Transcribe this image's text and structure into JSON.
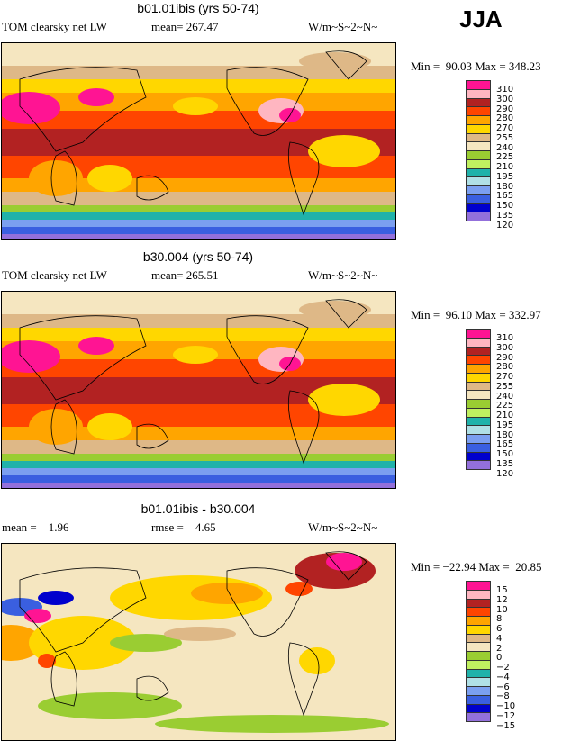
{
  "season": "JJA",
  "panels": [
    {
      "title": "b01.01ibis (yrs 50-74)",
      "left": "TOM clearsky net LW",
      "mid": "mean= 267.47",
      "units": "W/m~S~2~N~",
      "min": "Min =  90.03 Max = 348.23",
      "legend": [
        "310",
        "300",
        "290",
        "280",
        "270",
        "255",
        "240",
        "225",
        "210",
        "195",
        "180",
        "165",
        "150",
        "135",
        "120"
      ]
    },
    {
      "title": "b30.004 (yrs 50-74)",
      "left": "TOM clearsky net LW",
      "mid": "mean= 265.51",
      "units": "W/m~S~2~N~",
      "min": "Min =  96.10 Max = 332.97",
      "legend": [
        "310",
        "300",
        "290",
        "280",
        "270",
        "255",
        "240",
        "225",
        "210",
        "195",
        "180",
        "165",
        "150",
        "135",
        "120"
      ]
    },
    {
      "title": "b01.01ibis - b30.004",
      "left": "mean =    1.96",
      "mid": "rmse =    4.65",
      "units": "W/m~S~2~N~",
      "min": "Min = −22.94 Max =  20.85",
      "legend": [
        "15",
        "12",
        "10",
        "8",
        "6",
        "4",
        "2",
        "0",
        "−2",
        "−4",
        "−6",
        "−8",
        "−10",
        "−12",
        "−15"
      ]
    }
  ],
  "colors": [
    "#ff1493",
    "#ffb6c1",
    "#b22222",
    "#ff4500",
    "#ffa500",
    "#ffd700",
    "#deb887",
    "#f5e6c0",
    "#9acd32",
    "#c0f060",
    "#20b2aa",
    "#b0e0e6",
    "#7b9ff0",
    "#3a5fe0",
    "#0000cd",
    "#9370db"
  ]
}
